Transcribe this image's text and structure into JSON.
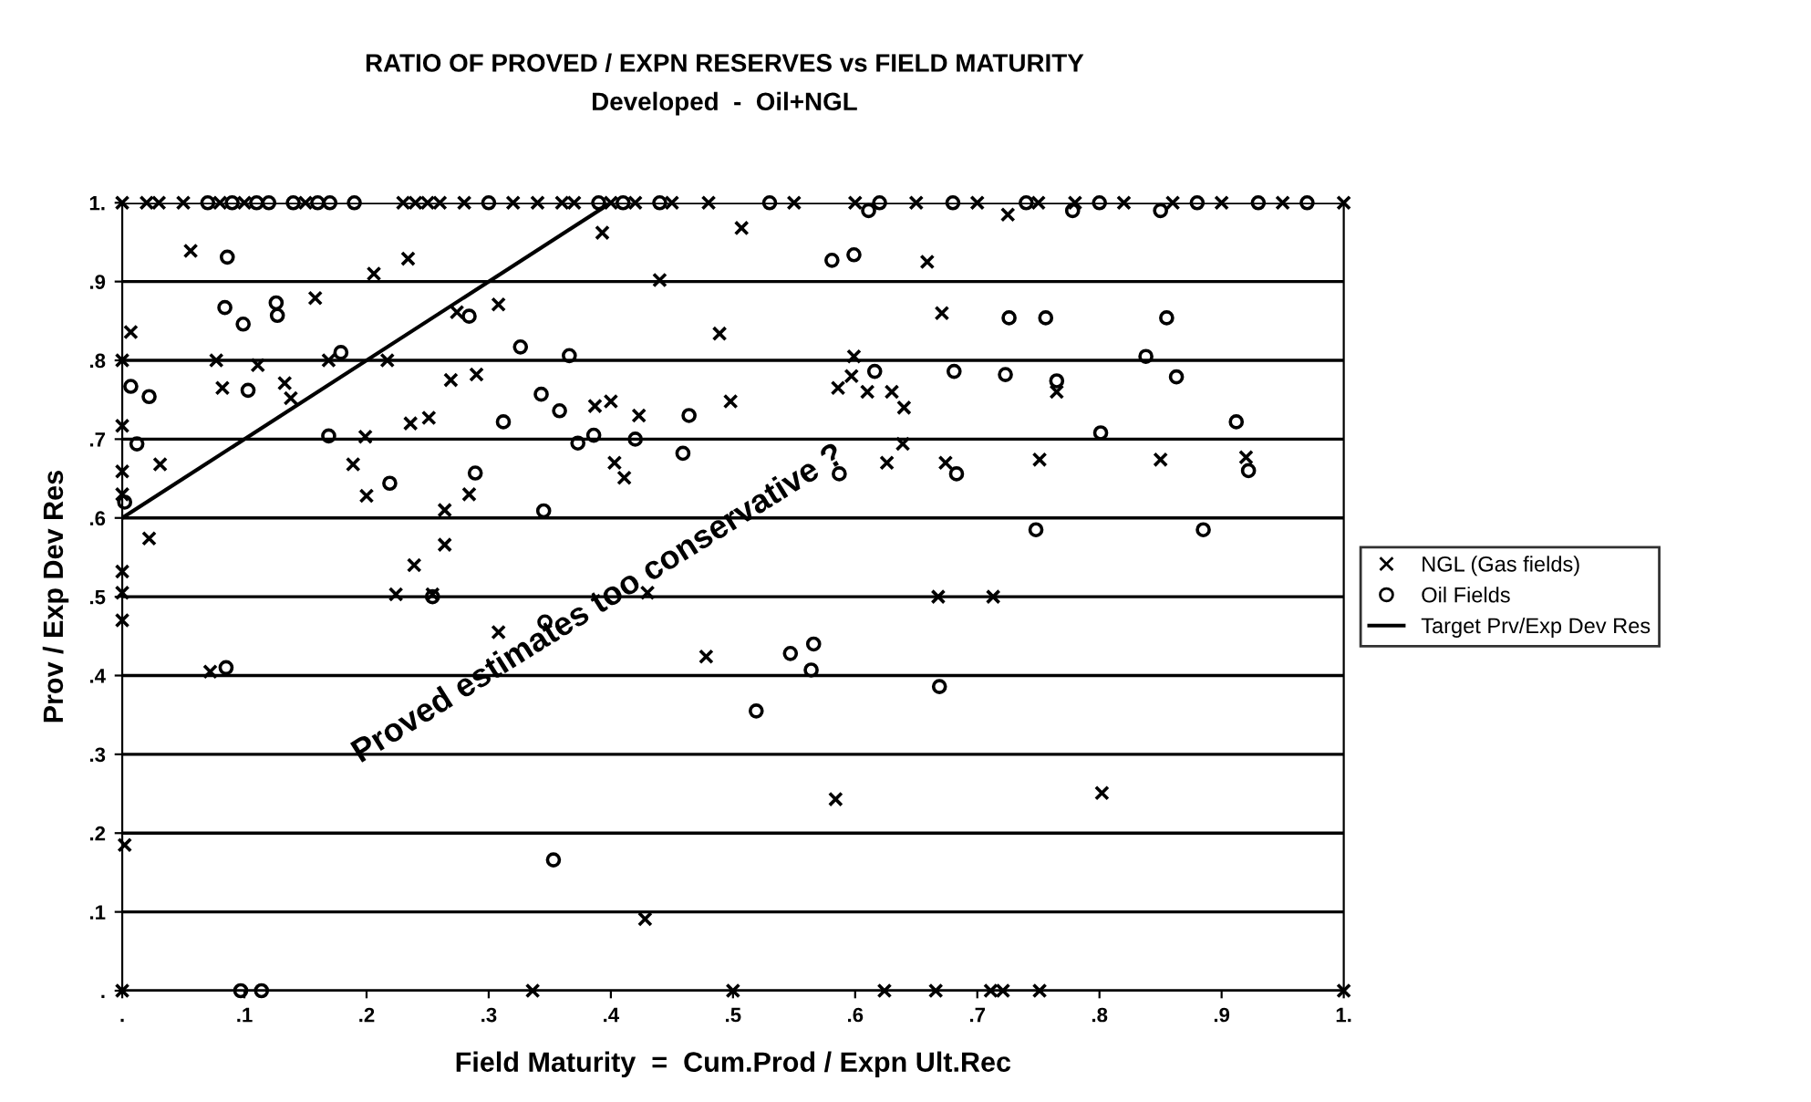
{
  "chart_data": {
    "type": "scatter",
    "title": "RATIO OF PROVED / EXPN RESERVES vs FIELD MATURITY",
    "subtitle": "Developed  -  Oil+NGL",
    "xlabel": "Field Maturity  =  Cum.Prod / Expn Ult.Rec",
    "ylabel": "Prov / Exp Dev Res",
    "xlim": [
      0,
      1
    ],
    "ylim": [
      0,
      1
    ],
    "xticks": [
      {
        "value": 0,
        "label": "."
      },
      {
        "value": 0.1,
        "label": ".1"
      },
      {
        "value": 0.2,
        "label": ".2"
      },
      {
        "value": 0.3,
        "label": ".3"
      },
      {
        "value": 0.4,
        "label": ".4"
      },
      {
        "value": 0.5,
        "label": ".5"
      },
      {
        "value": 0.6,
        "label": ".6"
      },
      {
        "value": 0.7,
        "label": ".7"
      },
      {
        "value": 0.8,
        "label": ".8"
      },
      {
        "value": 0.9,
        "label": ".9"
      },
      {
        "value": 1,
        "label": "1."
      }
    ],
    "yticks": [
      {
        "value": 0,
        "label": "."
      },
      {
        "value": 0.1,
        "label": ".1"
      },
      {
        "value": 0.2,
        "label": ".2"
      },
      {
        "value": 0.3,
        "label": ".3"
      },
      {
        "value": 0.4,
        "label": ".4"
      },
      {
        "value": 0.5,
        "label": ".5"
      },
      {
        "value": 0.6,
        "label": ".6"
      },
      {
        "value": 0.7,
        "label": ".7"
      },
      {
        "value": 0.8,
        "label": ".8"
      },
      {
        "value": 0.9,
        "label": ".9"
      },
      {
        "value": 1,
        "label": "1."
      }
    ],
    "grid": "y",
    "legend": "right",
    "annotations": [
      "Proved estimates too conservative ?"
    ],
    "series": [
      {
        "name": "NGL (Gas fields)",
        "marker": "cross",
        "color": "#000000",
        "x": [
          0,
          0.02,
          0.03,
          0.05,
          0.08,
          0.1,
          0.15,
          0.23,
          0.24,
          0.25,
          0.26,
          0.28,
          0.32,
          0.34,
          0.36,
          0.37,
          0.4,
          0.42,
          0.45,
          0.48,
          0.55,
          0.6,
          0.65,
          0.7,
          0.75,
          0.78,
          0.82,
          0.86,
          0.9,
          0.95,
          1.0,
          0.725,
          0.056,
          0.206,
          0.234,
          0.158,
          0.007,
          0,
          0.077,
          0.111,
          0.217,
          0.169,
          0.274,
          0.308,
          0.393,
          0.44,
          0.489,
          0.082,
          0.133,
          0.138,
          0.269,
          0.29,
          0,
          0.199,
          0.236,
          0.251,
          0.387,
          0.4,
          0.423,
          0.498,
          0,
          0.031,
          0.189,
          0.2,
          0.284,
          0.403,
          0.411,
          0.264,
          0.264,
          0.022,
          0.507,
          0.659,
          0.671,
          0.599,
          0.586,
          0.597,
          0.61,
          0.63,
          0.64,
          0.639,
          0.626,
          0.674,
          0.751,
          0.85,
          0.92,
          0.765,
          0,
          0,
          0,
          0,
          0.002,
          0.072,
          0.224,
          0.254,
          0.239,
          0.308,
          0.43,
          0.478,
          0.336,
          0.428,
          0,
          0.5,
          0.668,
          0.713,
          0.584,
          0.802,
          0.624,
          0.666,
          0.711,
          0.721,
          0.751,
          1.0
        ],
        "values": [
          1,
          1,
          1,
          1,
          1,
          1,
          1,
          1,
          1,
          1,
          1,
          1,
          1,
          1,
          1,
          1,
          1,
          1,
          1,
          1,
          1,
          1,
          1,
          1,
          1,
          1,
          1,
          1,
          1,
          1,
          1,
          0.985,
          0.939,
          0.91,
          0.929,
          0.879,
          0.836,
          0.8,
          0.8,
          0.794,
          0.8,
          0.8,
          0.861,
          0.871,
          0.962,
          0.902,
          0.834,
          0.765,
          0.771,
          0.752,
          0.775,
          0.782,
          0.717,
          0.703,
          0.72,
          0.727,
          0.742,
          0.748,
          0.73,
          0.748,
          0.659,
          0.668,
          0.668,
          0.628,
          0.63,
          0.67,
          0.651,
          0.61,
          0.566,
          0.574,
          0.968,
          0.925,
          0.86,
          0.805,
          0.765,
          0.78,
          0.76,
          0.76,
          0.74,
          0.694,
          0.67,
          0.67,
          0.674,
          0.674,
          0.677,
          0.76,
          0.63,
          0.532,
          0.505,
          0.47,
          0.185,
          0.405,
          0.503,
          0.503,
          0.54,
          0.455,
          0.505,
          0.424,
          0,
          0.091,
          0,
          0,
          0.5,
          0.5,
          0.243,
          0.251,
          0,
          0,
          0,
          0,
          0,
          0
        ]
      },
      {
        "name": "Oil Fields",
        "marker": "circle",
        "color": "#000000",
        "x": [
          0.07,
          0.09,
          0.11,
          0.12,
          0.14,
          0.16,
          0.17,
          0.19,
          0.3,
          0.39,
          0.41,
          0.44,
          0.53,
          0.62,
          0.68,
          0.74,
          0.8,
          0.88,
          0.93,
          0.97,
          0.611,
          0.778,
          0.85,
          0.179,
          0.284,
          0.103,
          0.086,
          0.084,
          0.099,
          0.126,
          0.127,
          0.326,
          0.366,
          0.007,
          0.022,
          0.343,
          0.358,
          0.312,
          0.386,
          0.373,
          0.42,
          0.464,
          0.459,
          0.012,
          0.169,
          0.219,
          0.289,
          0.345,
          0.002,
          0.581,
          0.599,
          0.726,
          0.756,
          0.855,
          0.616,
          0.681,
          0.723,
          0.765,
          0.838,
          0.863,
          0.801,
          0.912,
          0.587,
          0.683,
          0.922,
          0.748,
          0.885,
          0.085,
          0.097,
          0.114,
          0.254,
          0.346,
          0.353,
          0.547,
          0.566,
          0.564,
          0.669,
          0.519
        ],
        "values": [
          1,
          1,
          1,
          1,
          1,
          1,
          1,
          1,
          1,
          1,
          1,
          1,
          1,
          1,
          1,
          1,
          1,
          1,
          1,
          1,
          0.99,
          0.99,
          0.99,
          0.81,
          0.856,
          0.762,
          0.931,
          0.867,
          0.846,
          0.873,
          0.857,
          0.817,
          0.806,
          0.767,
          0.754,
          0.757,
          0.736,
          0.722,
          0.705,
          0.695,
          0.7,
          0.73,
          0.682,
          0.694,
          0.704,
          0.644,
          0.657,
          0.609,
          0.62,
          0.927,
          0.934,
          0.854,
          0.854,
          0.854,
          0.786,
          0.786,
          0.782,
          0.774,
          0.805,
          0.779,
          0.708,
          0.722,
          0.656,
          0.656,
          0.66,
          0.585,
          0.585,
          0.41,
          0,
          0,
          0.5,
          0.468,
          0.166,
          0.428,
          0.44,
          0.407,
          0.386,
          0.355
        ]
      },
      {
        "name": "Target Prv/Exp Dev Res",
        "type": "line",
        "marker": "none",
        "line_style": "solid",
        "color": "#000000",
        "x": [
          0,
          0.4
        ],
        "values": [
          0.6,
          1.0
        ]
      }
    ]
  }
}
